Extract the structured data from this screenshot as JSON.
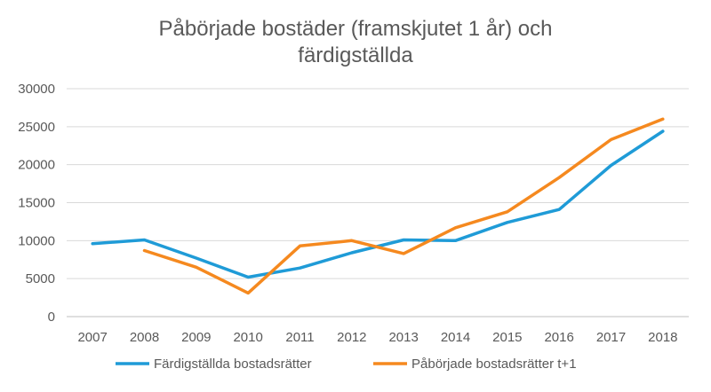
{
  "chart_data": {
    "type": "line",
    "title_line1": "Påbörjade bostäder (framskjutet 1 år) och",
    "title_line2": "färdigställda",
    "x": [
      "2007",
      "2008",
      "2009",
      "2010",
      "2011",
      "2012",
      "2013",
      "2014",
      "2015",
      "2016",
      "2017",
      "2018"
    ],
    "yticks": [
      "0",
      "5000",
      "10000",
      "15000",
      "20000",
      "25000",
      "30000"
    ],
    "ylim": [
      0,
      30000
    ],
    "grid": true,
    "legend_position": "bottom",
    "series": [
      {
        "name": "Färdigställda bostadsrätter",
        "color": "#1f9bd7",
        "values": [
          9600,
          10100,
          7700,
          5200,
          6400,
          8400,
          10100,
          10000,
          12400,
          14100,
          19900,
          24400
        ]
      },
      {
        "name": "Påbörjade bostadsrätter t+1",
        "color": "#f5891f",
        "values": [
          null,
          8700,
          6500,
          3100,
          9300,
          10000,
          8300,
          11700,
          13800,
          18300,
          23300,
          26000
        ]
      }
    ]
  }
}
